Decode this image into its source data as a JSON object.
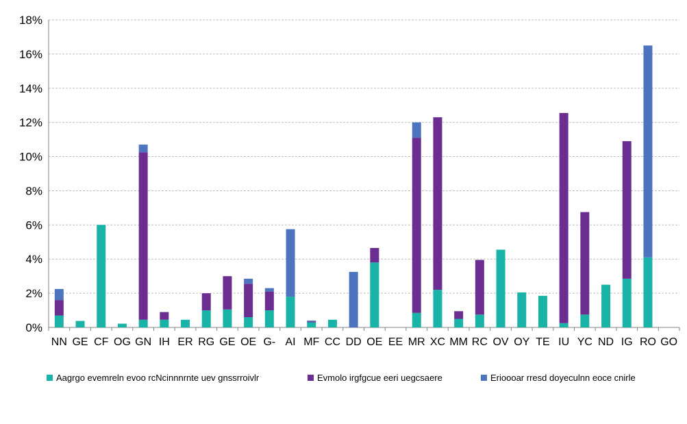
{
  "chart_data": {
    "type": "bar",
    "stacked": true,
    "categories": [
      "NN",
      "GE",
      "CF",
      "OG",
      "GN",
      "IH",
      "ER",
      "RG",
      "GE",
      "OE",
      "G-",
      "AI",
      "MF",
      "CC",
      "DD",
      "OE",
      "EE",
      "MR",
      "XC",
      "MM",
      "RC",
      "OV",
      "OY",
      "TE",
      "IU",
      "YC",
      "ND",
      "IG",
      "RO",
      "GO"
    ],
    "series": [
      {
        "name": "Aagrgo evemreln evoo rcNcinnnrnte uev gnssrroivlr",
        "color": "#1ab3a8",
        "values": [
          0.7,
          0.38,
          6.0,
          0.22,
          0.45,
          0.45,
          0.45,
          1.0,
          1.05,
          0.6,
          1.0,
          1.8,
          0.3,
          0.45,
          0,
          3.8,
          0,
          0.85,
          2.2,
          0.5,
          0.75,
          4.55,
          2.05,
          1.85,
          0.25,
          0.75,
          2.5,
          2.85,
          4.1,
          0
        ]
      },
      {
        "name": "Evmolo irgfgcue eeri uegcsaere",
        "color": "#6c2d91",
        "values": [
          0.9,
          0,
          0,
          0,
          9.8,
          0.45,
          0,
          1.0,
          1.95,
          1.95,
          1.1,
          0,
          0.05,
          0,
          0,
          0.85,
          0,
          10.25,
          10.1,
          0.45,
          3.2,
          0,
          0,
          0,
          12.3,
          6.0,
          0,
          8.05,
          0,
          0
        ]
      },
      {
        "name": "Erioooar rresd doyeculnn eoce cnirle",
        "color": "#4f74bf",
        "values": [
          0.65,
          0,
          0,
          0,
          0.45,
          0,
          0,
          0,
          0,
          0.3,
          0.2,
          3.95,
          0.05,
          0,
          3.25,
          0,
          0,
          0.9,
          0,
          0,
          0,
          0,
          0,
          0,
          0,
          0,
          0,
          0,
          12.4,
          0
        ]
      }
    ],
    "yaxis": {
      "min": 0,
      "max": 18,
      "ticks": [
        0,
        2,
        4,
        6,
        8,
        10,
        12,
        14,
        16,
        18
      ],
      "tick_labels": [
        "0%",
        "2%",
        "4%",
        "6%",
        "8%",
        "10%",
        "12%",
        "14%",
        "16%",
        "18%"
      ]
    },
    "grid": true,
    "gridline_style": "dashed",
    "legend_position": "bottom"
  }
}
